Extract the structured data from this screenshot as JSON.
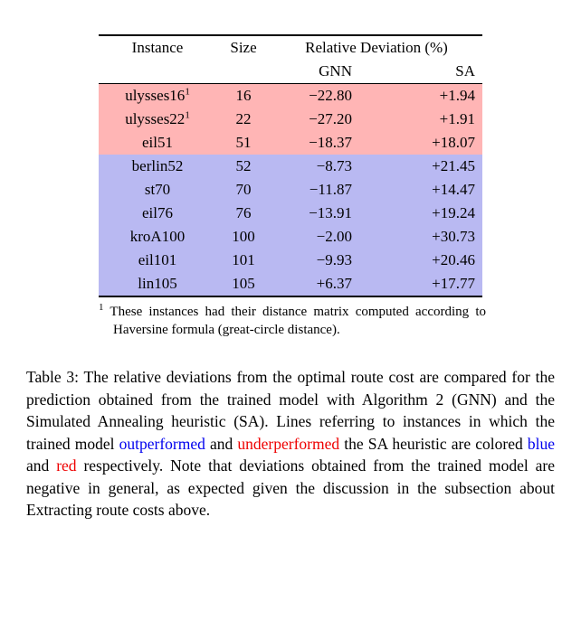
{
  "table": {
    "headers": {
      "instance": "Instance",
      "size": "Size",
      "deviation_group": "Relative Deviation (%)",
      "gnn": "GNN",
      "sa": "SA"
    },
    "rows": [
      {
        "instance": "ulysses16",
        "footnote_mark": "1",
        "size": "16",
        "gnn": "−22.80",
        "sa": "+1.94",
        "group": "red"
      },
      {
        "instance": "ulysses22",
        "footnote_mark": "1",
        "size": "22",
        "gnn": "−27.20",
        "sa": "+1.91",
        "group": "red"
      },
      {
        "instance": "eil51",
        "footnote_mark": "",
        "size": "51",
        "gnn": "−18.37",
        "sa": "+18.07",
        "group": "red"
      },
      {
        "instance": "berlin52",
        "footnote_mark": "",
        "size": "52",
        "gnn": "−8.73",
        "sa": "+21.45",
        "group": "blue"
      },
      {
        "instance": "st70",
        "footnote_mark": "",
        "size": "70",
        "gnn": "−11.87",
        "sa": "+14.47",
        "group": "blue"
      },
      {
        "instance": "eil76",
        "footnote_mark": "",
        "size": "76",
        "gnn": "−13.91",
        "sa": "+19.24",
        "group": "blue"
      },
      {
        "instance": "kroA100",
        "footnote_mark": "",
        "size": "100",
        "gnn": "−2.00",
        "sa": "+30.73",
        "group": "blue"
      },
      {
        "instance": "eil101",
        "footnote_mark": "",
        "size": "101",
        "gnn": "−9.93",
        "sa": "+20.46",
        "group": "blue"
      },
      {
        "instance": "lin105",
        "footnote_mark": "",
        "size": "105",
        "gnn": "+6.37",
        "sa": "+17.77",
        "group": "blue"
      }
    ],
    "colors": {
      "red_highlight": "#ffb5b5",
      "blue_highlight": "#b9b9f2"
    }
  },
  "footnote": {
    "marker": "1",
    "text": "These instances had their distance matrix computed according to Haversine formula (great-circle distance)."
  },
  "caption": {
    "colors": {
      "default": "#000000",
      "blue": "#0000ee",
      "red": "#ee0000"
    },
    "segments": [
      {
        "text": "Table 3: The relative deviations from the optimal route cost are compared for the prediction obtained from the trained model with Algorithm 2 (GNN) and the Simulated Annealing heuristic (SA). Lines referring to instances in which the trained model ",
        "color": "default"
      },
      {
        "text": "outperformed",
        "color": "blue"
      },
      {
        "text": " and ",
        "color": "default"
      },
      {
        "text": "underperformed",
        "color": "red"
      },
      {
        "text": " the SA heuristic are colored ",
        "color": "default"
      },
      {
        "text": "blue",
        "color": "blue"
      },
      {
        "text": " and ",
        "color": "default"
      },
      {
        "text": "red",
        "color": "red"
      },
      {
        "text": " respectively. Note that deviations obtained from the trained model are negative in general, as expected given the discussion in the subsection about Extracting route costs above.",
        "color": "default"
      }
    ]
  }
}
